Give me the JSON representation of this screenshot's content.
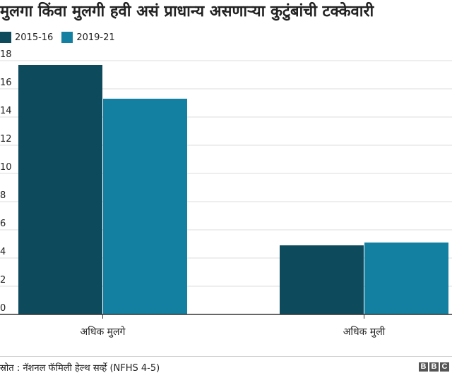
{
  "title": "मुलगा किंवा मुलगी हवी असं प्राधान्य असणाऱ्या कुटुंबांची टक्केवारी",
  "legend": {
    "items": [
      {
        "label": "2015-16",
        "color": "#0c4a5c"
      },
      {
        "label": "2019-21",
        "color": "#1380a1"
      }
    ]
  },
  "chart_data": {
    "type": "bar",
    "categories": [
      "अधिक मुलगे",
      "अधिक मुली"
    ],
    "series": [
      {
        "name": "2015-16",
        "values": [
          17.7,
          4.9
        ],
        "color": "#0c4a5c"
      },
      {
        "name": "2019-21",
        "values": [
          15.3,
          5.1
        ],
        "color": "#1380a1"
      }
    ],
    "ylim": [
      0,
      18
    ],
    "yticks": [
      0,
      2,
      4,
      6,
      8,
      10,
      12,
      14,
      16,
      18
    ],
    "grid": true,
    "legend_position": "top-left"
  },
  "source": "स्रोत : नॅशनल फॅमिली हेल्थ सर्व्हे (NFHS 4-5)",
  "logo": {
    "letters": [
      "B",
      "B",
      "C"
    ]
  }
}
